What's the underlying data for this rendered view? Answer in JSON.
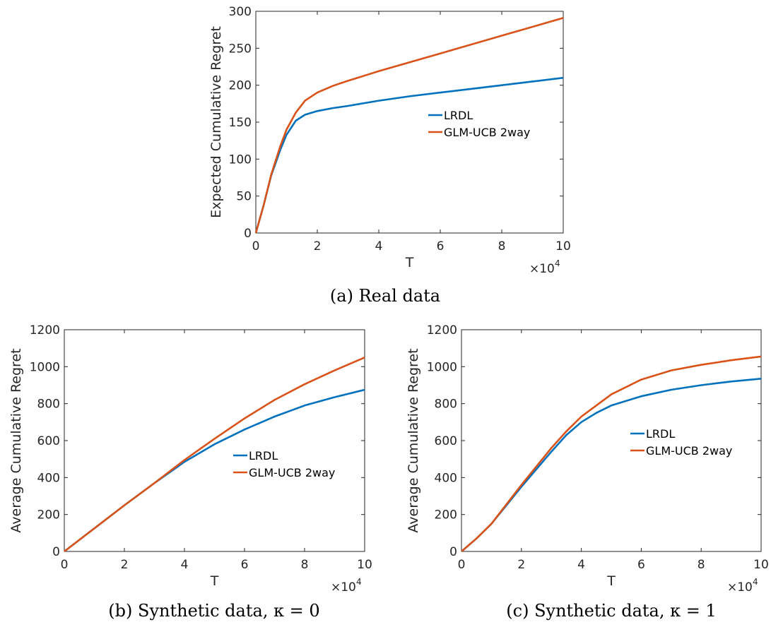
{
  "chart_data": [
    {
      "type": "line",
      "caption": "(a) Real data",
      "xlabel": "T",
      "ylabel": "Expected Cumulative Regret",
      "x_multiplier": "×10",
      "x_multiplier_exponent": "4",
      "xlim": [
        0,
        10
      ],
      "ylim": [
        0,
        300
      ],
      "xticks": [
        "0",
        "2",
        "4",
        "6",
        "8",
        "10"
      ],
      "yticks": [
        "0",
        "50",
        "100",
        "150",
        "200",
        "250",
        "300"
      ],
      "legend_position": "center-right",
      "series": [
        {
          "name": "LRDL",
          "color": "#0072BD",
          "x": [
            0,
            0.25,
            0.5,
            0.8,
            1.0,
            1.3,
            1.6,
            2.0,
            2.5,
            3.0,
            4.0,
            5.0,
            6.0,
            7.0,
            8.0,
            9.0,
            10.0
          ],
          "y": [
            0,
            37,
            78,
            113,
            133,
            152,
            160,
            165,
            169,
            172,
            179,
            185,
            190,
            195,
            200,
            205,
            210
          ]
        },
        {
          "name": "GLM-UCB 2way",
          "color": "#D95319",
          "x": [
            0,
            0.25,
            0.5,
            0.8,
            1.0,
            1.3,
            1.6,
            2.0,
            2.5,
            3.0,
            4.0,
            5.0,
            6.0,
            7.0,
            8.0,
            9.0,
            10.0
          ],
          "y": [
            0,
            37,
            79,
            118,
            140,
            163,
            179,
            190,
            199,
            206,
            219,
            231,
            243,
            255,
            267,
            279,
            291
          ]
        }
      ]
    },
    {
      "type": "line",
      "caption": "(b) Synthetic data, κ = 0",
      "xlabel": "T",
      "ylabel": "Average Cumulative Regret",
      "x_multiplier": "×10",
      "x_multiplier_exponent": "4",
      "xlim": [
        0,
        10
      ],
      "ylim": [
        0,
        1200
      ],
      "xticks": [
        "0",
        "2",
        "4",
        "6",
        "8",
        "10"
      ],
      "yticks": [
        "0",
        "200",
        "400",
        "600",
        "800",
        "1000",
        "1200"
      ],
      "legend_position": "lower-right",
      "series": [
        {
          "name": "LRDL",
          "color": "#0072BD",
          "x": [
            0,
            1,
            2,
            3,
            4,
            5,
            6,
            7,
            8,
            9,
            10
          ],
          "y": [
            0,
            125,
            250,
            370,
            485,
            580,
            660,
            730,
            790,
            835,
            875
          ]
        },
        {
          "name": "GLM-UCB 2way",
          "color": "#D95319",
          "x": [
            0,
            1,
            2,
            3,
            4,
            5,
            6,
            7,
            8,
            9,
            10
          ],
          "y": [
            0,
            125,
            250,
            370,
            495,
            610,
            720,
            820,
            905,
            980,
            1050
          ]
        }
      ]
    },
    {
      "type": "line",
      "caption": "(c) Synthetic data, κ = 1",
      "xlabel": "T",
      "ylabel": "Average Cumulative Regret",
      "x_multiplier": "×10",
      "x_multiplier_exponent": "4",
      "xlim": [
        0,
        10
      ],
      "ylim": [
        0,
        1200
      ],
      "xticks": [
        "0",
        "2",
        "4",
        "6",
        "8",
        "10"
      ],
      "yticks": [
        "0",
        "200",
        "400",
        "600",
        "800",
        "1000",
        "1200"
      ],
      "legend_position": "center-right",
      "series": [
        {
          "name": "LRDL",
          "color": "#0072BD",
          "x": [
            0,
            0.5,
            1,
            2,
            3,
            3.5,
            4,
            4.5,
            5,
            6,
            7,
            8,
            9,
            10
          ],
          "y": [
            0,
            70,
            150,
            350,
            540,
            630,
            700,
            750,
            790,
            840,
            875,
            900,
            920,
            935
          ],
          "note": ""
        },
        {
          "name": "GLM-UCB 2way",
          "color": "#D95319",
          "x": [
            0,
            0.5,
            1,
            2,
            3,
            3.5,
            4,
            4.5,
            5,
            6,
            7,
            8,
            9,
            10
          ],
          "y": [
            0,
            70,
            150,
            360,
            560,
            650,
            730,
            790,
            850,
            930,
            980,
            1010,
            1035,
            1055
          ]
        }
      ]
    }
  ]
}
